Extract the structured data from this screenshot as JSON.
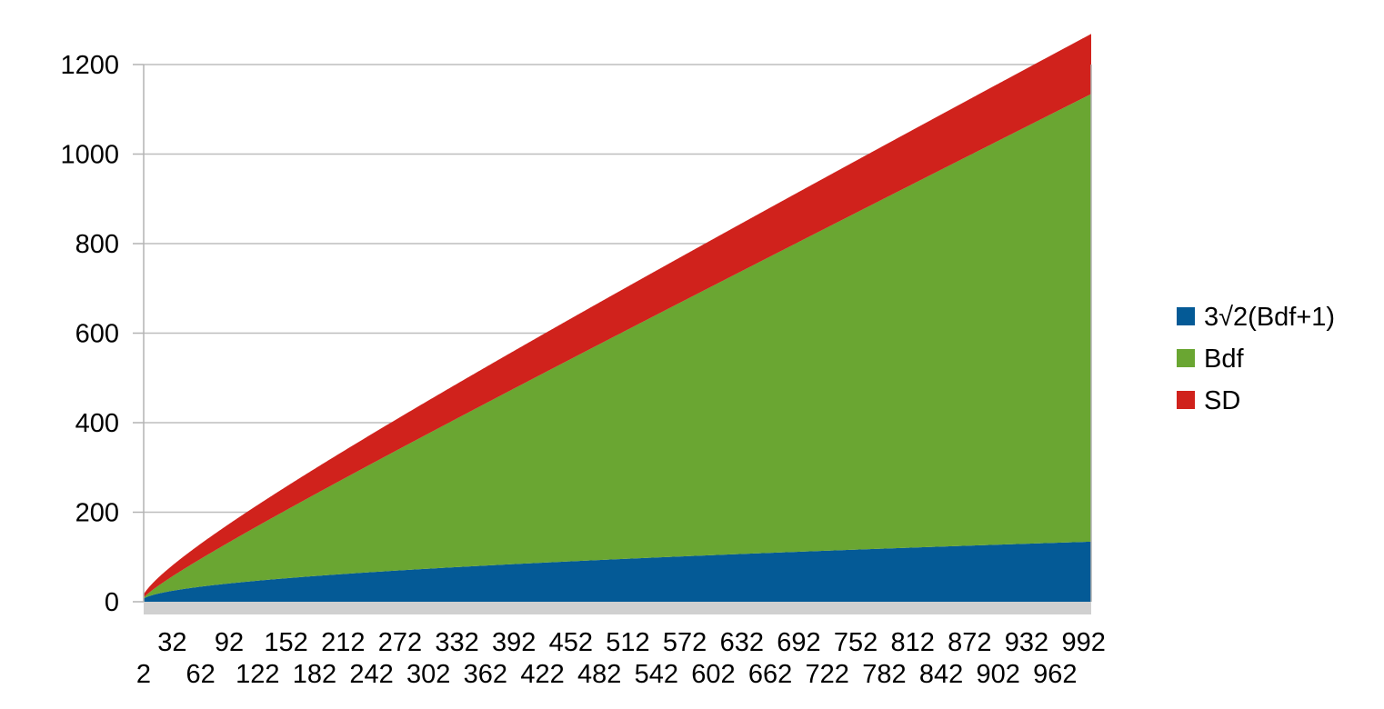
{
  "chart_data": {
    "type": "area",
    "stacked": true,
    "title": "",
    "xlabel": "",
    "ylabel": "",
    "x_start": 2,
    "x_end": 1000,
    "x_step": 1,
    "x_tick_labels": [
      "2",
      "32",
      "62",
      "92",
      "122",
      "152",
      "182",
      "212",
      "242",
      "272",
      "302",
      "332",
      "362",
      "392",
      "422",
      "452",
      "482",
      "512",
      "542",
      "572",
      "602",
      "632",
      "662",
      "692",
      "722",
      "752",
      "782",
      "812",
      "842",
      "872",
      "902",
      "932",
      "962",
      "992"
    ],
    "ylim": [
      0,
      1200
    ],
    "y_ticks": [
      "0",
      "200",
      "400",
      "600",
      "800",
      "1000",
      "1200"
    ],
    "grid": true,
    "legend_position": "right",
    "series": [
      {
        "name": "3√2(Bdf+1)",
        "color": "#045a96",
        "formula": "3*sqrt(2*(x+1))",
        "sample_values": [
          {
            "x": 2,
            "y": 7.3
          },
          {
            "x": 500,
            "y": 95
          },
          {
            "x": 1000,
            "y": 134
          }
        ]
      },
      {
        "name": "Bdf",
        "color": "#6aa632",
        "formula": "x",
        "sample_values": [
          {
            "x": 2,
            "y": 2
          },
          {
            "x": 500,
            "y": 500
          },
          {
            "x": 1000,
            "y": 1000
          }
        ]
      },
      {
        "name": "SD",
        "color": "#d0221c",
        "formula": "3*sqrt(2*(x+1))",
        "sample_values": [
          {
            "x": 2,
            "y": 7.3
          },
          {
            "x": 500,
            "y": 95
          },
          {
            "x": 1000,
            "y": 134
          }
        ]
      }
    ]
  }
}
